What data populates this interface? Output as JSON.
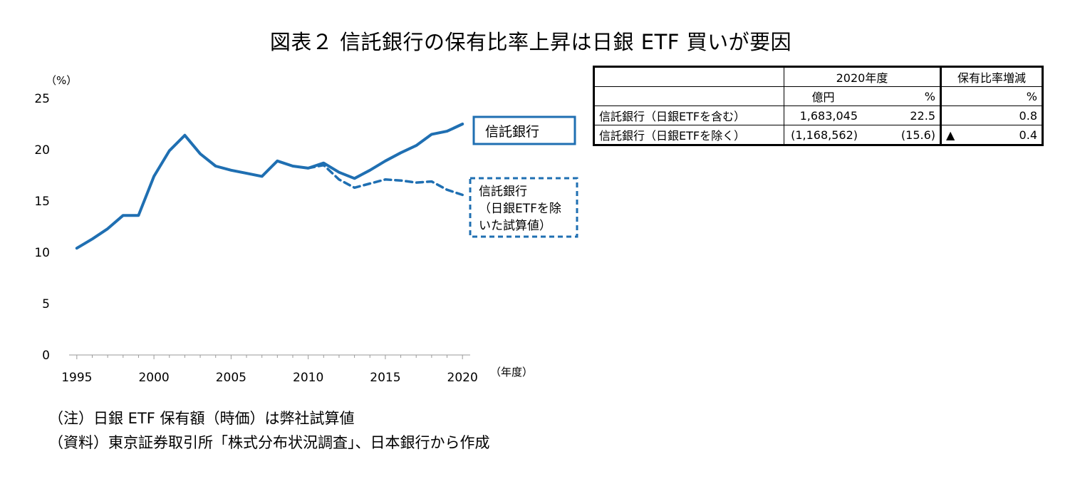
{
  "title": "図表２ 信託銀行の保有比率上昇は日銀 ETF 買いが要因",
  "chart_data": {
    "type": "line",
    "y_unit": "（%）",
    "x_unit": "（年度）",
    "ylim": [
      0,
      25
    ],
    "yticks": [
      0,
      5,
      10,
      15,
      20,
      25
    ],
    "xticks": [
      1995,
      2000,
      2005,
      2010,
      2015,
      2020
    ],
    "xlim": [
      1995,
      2020
    ],
    "series": [
      {
        "name": "信託銀行",
        "style": "solid",
        "color": "#1f6fb2",
        "x": [
          1995,
          1996,
          1997,
          1998,
          1999,
          2000,
          2001,
          2002,
          2003,
          2004,
          2005,
          2006,
          2007,
          2008,
          2009,
          2010,
          2011,
          2012,
          2013,
          2014,
          2015,
          2016,
          2017,
          2018,
          2019,
          2020
        ],
        "values": [
          10.4,
          11.3,
          12.3,
          13.6,
          13.6,
          17.4,
          19.9,
          21.4,
          19.6,
          18.4,
          18.0,
          17.7,
          17.4,
          18.9,
          18.4,
          18.2,
          18.7,
          17.8,
          17.2,
          18.0,
          18.9,
          19.7,
          20.4,
          21.5,
          21.8,
          22.5
        ]
      },
      {
        "name": "信託銀行（日銀ETFを除いた試算値）",
        "legend_lines": [
          "信託銀行",
          "（日銀ETFを除",
          "いた試算値）"
        ],
        "style": "dashed",
        "color": "#1f6fb2",
        "x": [
          2010,
          2011,
          2012,
          2013,
          2014,
          2015,
          2016,
          2017,
          2018,
          2019,
          2020
        ],
        "values": [
          18.2,
          18.5,
          17.1,
          16.3,
          16.7,
          17.1,
          17.0,
          16.8,
          16.9,
          16.1,
          15.6
        ]
      }
    ]
  },
  "table": {
    "header1": {
      "year": "2020年度",
      "change": "保有比率増減"
    },
    "header2": {
      "yen": "億円",
      "pct": "%",
      "change_pct": "%"
    },
    "rows": [
      {
        "label": "信託銀行（日銀ETFを含む）",
        "yen": "1,683,045",
        "pct": "22.5",
        "marker": "",
        "change": "0.8"
      },
      {
        "label": "信託銀行（日銀ETFを除く）",
        "yen": "(1,168,562)",
        "pct": "(15.6)",
        "marker": "▲",
        "change": "0.4"
      }
    ]
  },
  "notes": [
    "（注）日銀 ETF 保有額（時価）は弊社試算値",
    "（資料）東京証券取引所「株式分布状況調査」、日本銀行から作成"
  ]
}
